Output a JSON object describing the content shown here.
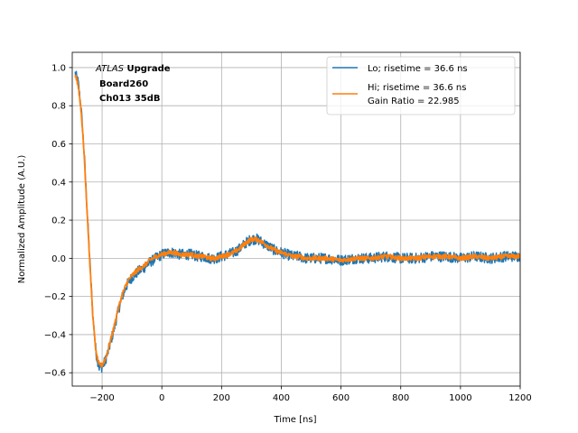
{
  "chart_data": {
    "type": "line",
    "xlabel": "Time [ns]",
    "ylabel": "Normalized Amplitude (A.U.)",
    "xlim": [
      -300,
      1200
    ],
    "ylim": [
      -0.67,
      1.08
    ],
    "xticks": [
      -200,
      0,
      200,
      400,
      600,
      800,
      1000,
      1200
    ],
    "yticks": [
      -0.6,
      -0.4,
      -0.2,
      0.0,
      0.2,
      0.4,
      0.6,
      0.8,
      1.0
    ],
    "xtick_labels": [
      "−200",
      "0",
      "200",
      "400",
      "600",
      "800",
      "1000",
      "1200"
    ],
    "ytick_labels": [
      "−0.6",
      "−0.4",
      "−0.2",
      "0.0",
      "0.2",
      "0.4",
      "0.6",
      "0.8",
      "1.0"
    ],
    "grid": true,
    "legend_position": "top-right",
    "annotation": {
      "line1_italic": "ATLAS",
      "line1_bold": "Upgrade",
      "line2": "Board260",
      "line3": "Ch013 35dB"
    },
    "series": [
      {
        "name": "Lo; risetime = 36.6 ns",
        "color": "#1f77b4",
        "noise": 0.028,
        "x": [
          -290,
          -280,
          -270,
          -260,
          -250,
          -240,
          -230,
          -220,
          -210,
          -200,
          -190,
          -180,
          -170,
          -160,
          -150,
          -140,
          -130,
          -120,
          -110,
          -100,
          -80,
          -60,
          -40,
          -20,
          0,
          20,
          40,
          60,
          80,
          100,
          120,
          140,
          160,
          180,
          200,
          220,
          240,
          260,
          280,
          300,
          320,
          340,
          360,
          380,
          400,
          420,
          440,
          460,
          480,
          500,
          550,
          600,
          650,
          700,
          750,
          800,
          850,
          900,
          950,
          1000,
          1050,
          1100,
          1150,
          1200
        ],
        "y": [
          0.97,
          0.92,
          0.78,
          0.55,
          0.25,
          -0.05,
          -0.32,
          -0.5,
          -0.57,
          -0.57,
          -0.54,
          -0.49,
          -0.43,
          -0.37,
          -0.3,
          -0.24,
          -0.19,
          -0.15,
          -0.12,
          -0.1,
          -0.07,
          -0.05,
          -0.02,
          0.0,
          0.02,
          0.03,
          0.03,
          0.02,
          0.02,
          0.02,
          0.01,
          0.01,
          0.0,
          0.0,
          0.01,
          0.02,
          0.03,
          0.05,
          0.08,
          0.1,
          0.1,
          0.08,
          0.06,
          0.04,
          0.03,
          0.02,
          0.01,
          0.01,
          0.0,
          0.0,
          0.0,
          -0.01,
          0.0,
          0.0,
          0.01,
          0.0,
          0.0,
          0.01,
          0.01,
          0.0,
          0.01,
          0.0,
          0.01,
          0.01
        ]
      },
      {
        "name": "Hi; risetime = 36.6 ns\n Gain Ratio = 22.985",
        "color": "#ff7f0e",
        "noise": 0.012,
        "x": [
          -290,
          -280,
          -270,
          -260,
          -250,
          -240,
          -230,
          -220,
          -210,
          -200,
          -190,
          -180,
          -170,
          -160,
          -150,
          -140,
          -130,
          -120,
          -110,
          -100,
          -80,
          -60,
          -40,
          -20,
          0,
          20,
          40,
          60,
          80,
          100,
          120,
          140,
          160,
          180,
          200,
          220,
          240,
          260,
          280,
          300,
          320,
          340,
          360,
          380,
          400,
          420,
          440,
          460,
          480,
          500,
          550,
          600,
          650,
          700,
          750,
          800,
          850,
          900,
          950,
          1000,
          1050,
          1100,
          1150,
          1200
        ],
        "y": [
          0.96,
          0.91,
          0.77,
          0.54,
          0.24,
          -0.06,
          -0.33,
          -0.5,
          -0.56,
          -0.56,
          -0.53,
          -0.48,
          -0.42,
          -0.36,
          -0.29,
          -0.23,
          -0.18,
          -0.14,
          -0.11,
          -0.09,
          -0.06,
          -0.04,
          -0.01,
          0.01,
          0.02,
          0.03,
          0.03,
          0.02,
          0.02,
          0.02,
          0.01,
          0.01,
          0.0,
          0.0,
          0.01,
          0.02,
          0.03,
          0.05,
          0.08,
          0.1,
          0.1,
          0.08,
          0.06,
          0.04,
          0.03,
          0.02,
          0.01,
          0.01,
          0.0,
          0.0,
          0.0,
          -0.01,
          0.0,
          0.0,
          0.01,
          0.0,
          0.0,
          0.01,
          0.01,
          0.0,
          0.01,
          0.0,
          0.01,
          0.01
        ]
      }
    ]
  }
}
